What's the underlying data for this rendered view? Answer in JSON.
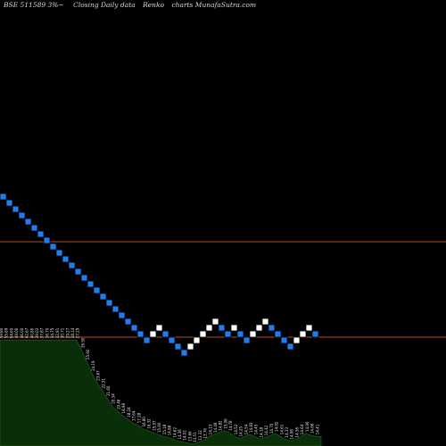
{
  "header": {
    "symbol": "BSE 511589 3%~",
    "subtitle": "Closing Daily data",
    "chart_name": "Renko",
    "source": "charts MunafaSutra.com"
  },
  "colors": {
    "background": "#000000",
    "down_brick": "#1e7ef0",
    "up_brick": "#ffffff",
    "reference_line": "#b5501e",
    "volume_area": "#0a2e0a",
    "volume_outline": "#1e6a1e"
  },
  "chart_data": {
    "type": "renko",
    "bricks": [
      {
        "level": 0,
        "dir": "down"
      },
      {
        "level": 1,
        "dir": "down"
      },
      {
        "level": 2,
        "dir": "down"
      },
      {
        "level": 3,
        "dir": "down"
      },
      {
        "level": 4,
        "dir": "down"
      },
      {
        "level": 5,
        "dir": "down"
      },
      {
        "level": 6,
        "dir": "down"
      },
      {
        "level": 7,
        "dir": "down"
      },
      {
        "level": 8,
        "dir": "down"
      },
      {
        "level": 9,
        "dir": "down"
      },
      {
        "level": 10,
        "dir": "down"
      },
      {
        "level": 11,
        "dir": "down"
      },
      {
        "level": 12,
        "dir": "down"
      },
      {
        "level": 13,
        "dir": "down"
      },
      {
        "level": 14,
        "dir": "down"
      },
      {
        "level": 15,
        "dir": "down"
      },
      {
        "level": 16,
        "dir": "down"
      },
      {
        "level": 17,
        "dir": "down"
      },
      {
        "level": 18,
        "dir": "down"
      },
      {
        "level": 19,
        "dir": "down"
      },
      {
        "level": 20,
        "dir": "down"
      },
      {
        "level": 21,
        "dir": "down"
      },
      {
        "level": 22,
        "dir": "down"
      },
      {
        "level": 23,
        "dir": "down"
      },
      {
        "level": 22,
        "dir": "up"
      },
      {
        "level": 21,
        "dir": "up"
      },
      {
        "level": 22,
        "dir": "down"
      },
      {
        "level": 23,
        "dir": "down"
      },
      {
        "level": 24,
        "dir": "down"
      },
      {
        "level": 25,
        "dir": "down"
      },
      {
        "level": 24,
        "dir": "up"
      },
      {
        "level": 23,
        "dir": "up"
      },
      {
        "level": 22,
        "dir": "up"
      },
      {
        "level": 21,
        "dir": "up"
      },
      {
        "level": 20,
        "dir": "up"
      },
      {
        "level": 21,
        "dir": "down"
      },
      {
        "level": 22,
        "dir": "down"
      },
      {
        "level": 21,
        "dir": "up"
      },
      {
        "level": 22,
        "dir": "down"
      },
      {
        "level": 23,
        "dir": "down"
      },
      {
        "level": 22,
        "dir": "up"
      },
      {
        "level": 21,
        "dir": "up"
      },
      {
        "level": 20,
        "dir": "up"
      },
      {
        "level": 21,
        "dir": "down"
      },
      {
        "level": 22,
        "dir": "down"
      },
      {
        "level": 23,
        "dir": "down"
      },
      {
        "level": 24,
        "dir": "down"
      },
      {
        "level": 23,
        "dir": "up"
      },
      {
        "level": 22,
        "dir": "up"
      },
      {
        "level": 21,
        "dir": "up"
      },
      {
        "level": 22,
        "dir": "down"
      }
    ],
    "reference_lines": [
      271,
      378
    ],
    "volume": [
      {
        "label": "59.80",
        "v": 0.55
      },
      {
        "label": "55.69",
        "v": 0.55
      },
      {
        "label": "54.60",
        "v": 0.55
      },
      {
        "label": "49.00",
        "v": 0.55
      },
      {
        "label": "46.00",
        "v": 0.55
      },
      {
        "label": "42.67",
        "v": 0.55
      },
      {
        "label": "40.80",
        "v": 0.55
      },
      {
        "label": "39.02",
        "v": 0.55
      },
      {
        "label": "37.87",
        "v": 0.55
      },
      {
        "label": "36.70",
        "v": 0.55
      },
      {
        "label": "34.75",
        "v": 0.55
      },
      {
        "label": "32.91",
        "v": 0.55
      },
      {
        "label": "30.71",
        "v": 0.55
      },
      {
        "label": "29.27",
        "v": 0.55
      },
      {
        "label": "28.14",
        "v": 0.55
      },
      {
        "label": "27.29",
        "v": 0.55
      },
      {
        "label": "26.50",
        "v": 0.5
      },
      {
        "label": "25.60",
        "v": 0.44
      },
      {
        "label": "24.19",
        "v": 0.38
      },
      {
        "label": "23.67",
        "v": 0.33
      },
      {
        "label": "22.51",
        "v": 0.29
      },
      {
        "label": "21.60",
        "v": 0.25
      },
      {
        "label": "20.34",
        "v": 0.21
      },
      {
        "label": "19.46",
        "v": 0.18
      },
      {
        "label": "18.98",
        "v": 0.16
      },
      {
        "label": "18.24",
        "v": 0.14
      },
      {
        "label": "17.64",
        "v": 0.12
      },
      {
        "label": "17.28",
        "v": 0.11
      },
      {
        "label": "16.80",
        "v": 0.09
      },
      {
        "label": "16.32",
        "v": 0.08
      },
      {
        "label": "15.97",
        "v": 0.07
      },
      {
        "label": "15.60",
        "v": 0.06
      },
      {
        "label": "15.18",
        "v": 0.05
      },
      {
        "label": "14.88",
        "v": 0.045
      },
      {
        "label": "14.62",
        "v": 0.035
      },
      {
        "label": "14.36",
        "v": 0.025
      },
      {
        "label": "14.02",
        "v": 0.02
      },
      {
        "label": "13.66",
        "v": 0.015
      },
      {
        "label": "13.51",
        "v": 0.01
      },
      {
        "label": "13.32",
        "v": 0.02
      },
      {
        "label": "13.76",
        "v": 0.03
      },
      {
        "label": "14.13",
        "v": 0.05
      },
      {
        "label": "14.49",
        "v": 0.06
      },
      {
        "label": "14.82",
        "v": 0.07
      },
      {
        "label": "15.06",
        "v": 0.08
      },
      {
        "label": "14.78",
        "v": 0.07
      },
      {
        "label": "14.52",
        "v": 0.05
      },
      {
        "label": "14.25",
        "v": 0.04
      },
      {
        "label": "14.54",
        "v": 0.05
      },
      {
        "label": "14.83",
        "v": 0.06
      },
      {
        "label": "14.45",
        "v": 0.05
      },
      {
        "label": "14.18",
        "v": 0.035
      },
      {
        "label": "14.42",
        "v": 0.045
      },
      {
        "label": "14.70",
        "v": 0.055
      },
      {
        "label": "14.92",
        "v": 0.065
      },
      {
        "label": "14.61",
        "v": 0.05
      },
      {
        "label": "14.33",
        "v": 0.035
      },
      {
        "label": "14.08",
        "v": 0.025
      },
      {
        "label": "14.36",
        "v": 0.035
      },
      {
        "label": "14.64",
        "v": 0.05
      },
      {
        "label": "14.90",
        "v": 0.065
      },
      {
        "label": "14.66",
        "v": 0.055
      },
      {
        "label": "14.41",
        "v": 0.05
      }
    ]
  }
}
